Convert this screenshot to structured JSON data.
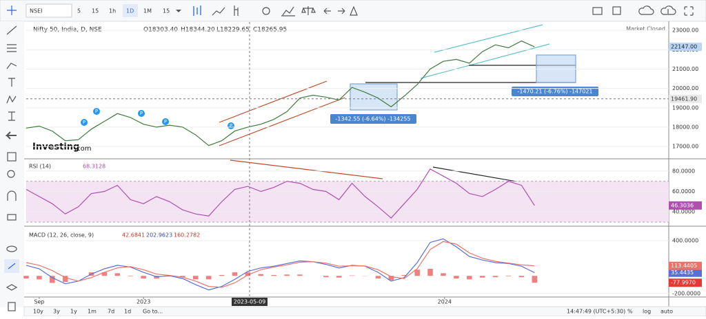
{
  "toolbar": {
    "symbol": "NSEI",
    "intervals": [
      "5",
      "15",
      "1h",
      "1D",
      "1M",
      "15"
    ]
  },
  "status": "Market Closed",
  "logo": {
    "name": "Investing",
    "suffix": ".com"
  },
  "markers": [
    "P",
    "P",
    "P",
    "P",
    "P"
  ],
  "measures": [
    "-1342.55 (-6.64%) -134255",
    "-1470.21 (-6.76%) -147021"
  ],
  "crosshair": {
    "date": "2023-05-09",
    "price": {
      "value": 19461.9,
      "label": "19461.90"
    }
  },
  "bottom_bar": {
    "ranges": [
      "10y",
      "3y",
      "1y",
      "1m",
      "7d",
      "1d"
    ],
    "goto": "Go to...",
    "clock": "14:47:49 (UTC+5:30)",
    "options": [
      "%",
      "log",
      "auto"
    ]
  },
  "chart_data": [
    {
      "type": "line",
      "title": "Nifty 50, India, D, NSE",
      "readouts": [
        "O18303.40",
        "H18344.20",
        "L18229.65",
        "C18265.95"
      ],
      "x": [
        0,
        1,
        2,
        3,
        4,
        5,
        6,
        7,
        8,
        9,
        10,
        11,
        12,
        13,
        14,
        15,
        16,
        17,
        18,
        19,
        20,
        21,
        22,
        23,
        24,
        25,
        26,
        27,
        28,
        29,
        30,
        31,
        32,
        33,
        34,
        35,
        36,
        37,
        38,
        39
      ],
      "values": [
        17950,
        18050,
        17800,
        17300,
        17350,
        17900,
        18300,
        18700,
        18500,
        18150,
        18000,
        18100,
        18000,
        17600,
        17050,
        17300,
        17800,
        18000,
        18150,
        18400,
        18800,
        19500,
        19650,
        19550,
        19400,
        20050,
        19800,
        19500,
        19050,
        19600,
        20200,
        21000,
        21400,
        21500,
        21300,
        21900,
        22250,
        22100,
        22450,
        22147
      ],
      "color": "#3d7a3d",
      "xlim": [
        0,
        49.3
      ],
      "ylim": [
        16400,
        23430
      ],
      "yticks": [
        {
          "value": 17000,
          "label": "17000.00"
        },
        {
          "value": 18000,
          "label": "18000.00"
        },
        {
          "value": 19000,
          "label": "19000.00"
        },
        {
          "value": 20000,
          "label": "20000.00"
        },
        {
          "value": 21000,
          "label": "21000.00"
        },
        {
          "value": 22000,
          "label": "22000.00"
        },
        {
          "value": 23000,
          "label": "23000.00"
        }
      ],
      "grid": true,
      "last_tag": {
        "value": 22147,
        "label": "22147.00"
      }
    },
    {
      "type": "line",
      "title": "RSI (14)",
      "readouts": [
        68.3128
      ],
      "x": [
        0,
        1,
        2,
        3,
        4,
        5,
        6,
        7,
        8,
        9,
        10,
        11,
        12,
        13,
        14,
        15,
        16,
        17,
        18,
        19,
        20,
        21,
        22,
        23,
        24,
        25,
        26,
        27,
        28,
        29,
        30,
        31,
        32,
        33,
        34,
        35,
        36,
        37,
        38,
        39
      ],
      "values": [
        62,
        55,
        48,
        38,
        45,
        58,
        60,
        66,
        52,
        48,
        55,
        50,
        42,
        38,
        36,
        50,
        62,
        65,
        60,
        64,
        70,
        68,
        62,
        60,
        52,
        68,
        55,
        45,
        34,
        48,
        62,
        82,
        75,
        68,
        58,
        55,
        62,
        70,
        66,
        46.3036
      ],
      "color": "#b04fb0",
      "band": [
        30,
        70
      ],
      "xlim": [
        0,
        49.3
      ],
      "ylim": [
        26.7,
        91.3
      ],
      "yticks": [
        {
          "value": 40,
          "label": "40.0000"
        },
        {
          "value": 60,
          "label": "60.0000"
        },
        {
          "value": 80,
          "label": "80.0000"
        }
      ],
      "grid": true,
      "last_tag": 46.3036
    },
    {
      "type": "line",
      "title": "MACD (12, 26, close, 9)",
      "readouts": [
        42.6841,
        202.9623,
        160.2782
      ],
      "x": [
        0,
        1,
        2,
        3,
        4,
        5,
        6,
        7,
        8,
        9,
        10,
        11,
        12,
        13,
        14,
        15,
        16,
        17,
        18,
        19,
        20,
        21,
        22,
        23,
        24,
        25,
        26,
        27,
        28,
        29,
        30,
        31,
        32,
        33,
        34,
        35,
        36,
        37,
        38,
        39
      ],
      "series": [
        {
          "color": "#5a6fd6",
          "values": [
            120,
            80,
            -20,
            -90,
            -60,
            20,
            80,
            120,
            100,
            40,
            -10,
            0,
            -30,
            -100,
            -160,
            -120,
            -40,
            50,
            90,
            110,
            140,
            170,
            160,
            130,
            90,
            120,
            110,
            40,
            -60,
            -20,
            150,
            380,
            420,
            330,
            220,
            180,
            150,
            140,
            110,
            35.4435
          ],
          "last_tag": 35.4435
        },
        {
          "color": "#e8736a",
          "values": [
            150,
            120,
            60,
            -20,
            -60,
            -20,
            40,
            90,
            105,
            70,
            20,
            5,
            -15,
            -60,
            -120,
            -130,
            -80,
            10,
            70,
            100,
            125,
            155,
            160,
            145,
            110,
            115,
            112,
            70,
            -10,
            -30,
            80,
            300,
            390,
            360,
            260,
            200,
            165,
            145,
            125,
            113.4405
          ],
          "last_tag": 113.4405
        }
      ],
      "histogram": {
        "color": "#f08080",
        "values": [
          -30,
          -40,
          -80,
          -70,
          0,
          40,
          40,
          30,
          -5,
          -30,
          -30,
          -5,
          -15,
          -40,
          -40,
          10,
          40,
          40,
          20,
          10,
          15,
          15,
          0,
          -15,
          -20,
          5,
          -2,
          -30,
          -50,
          10,
          70,
          80,
          30,
          -30,
          -40,
          -20,
          -15,
          -5,
          -15,
          -77.997
        ],
        "last_tag": {
          "value": -77.997,
          "label": "-77.9970"
        }
      },
      "xlim": [
        0,
        49.3
      ],
      "ylim": [
        -240,
        556
      ],
      "yticks": [
        {
          "value": -200,
          "label": "-200.0000"
        },
        {
          "value": 400,
          "label": "400.0000"
        }
      ],
      "xticks": [
        {
          "value": 1,
          "label": "Sep"
        },
        {
          "value": 9,
          "label": "2023"
        },
        {
          "value": 32.1,
          "label": "2024"
        }
      ],
      "grid": true
    }
  ]
}
